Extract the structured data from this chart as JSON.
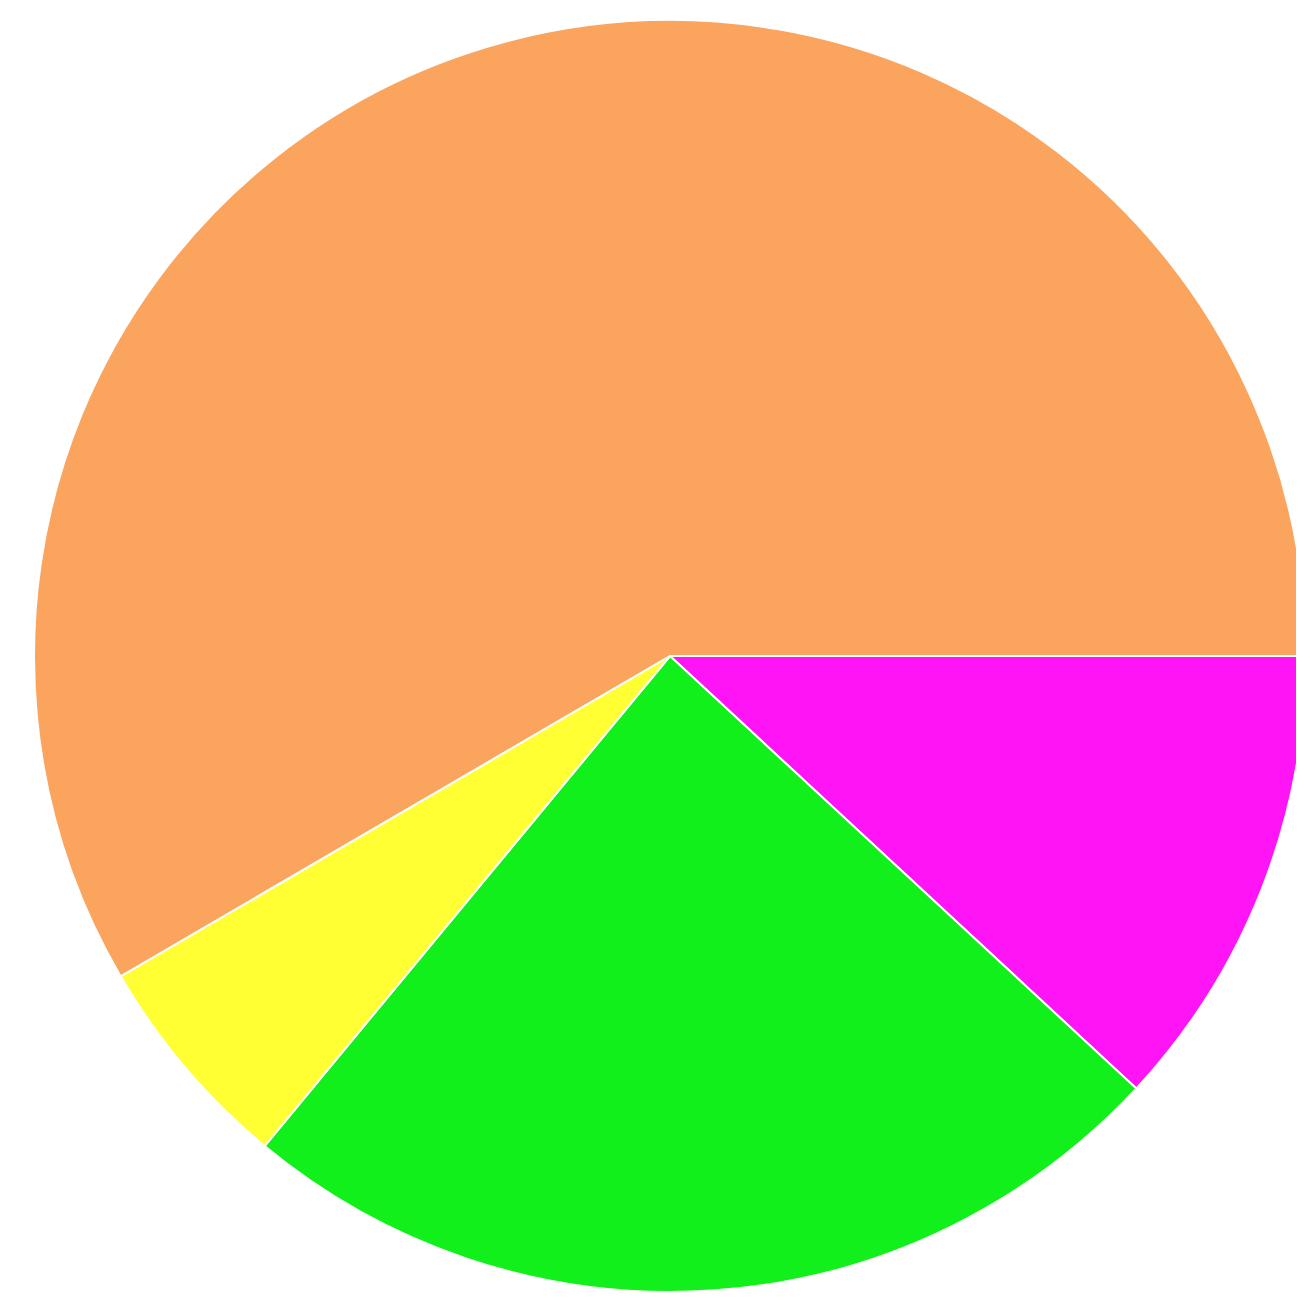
{
  "chart_data": {
    "type": "pie",
    "categories": [
      null,
      null,
      null,
      null
    ],
    "values": [
      11.9,
      24.1,
      5.6,
      58.4
    ],
    "colors": [
      "#ff14f5",
      "#11f01a",
      "#ffff33",
      "#fba45e"
    ]
  }
}
